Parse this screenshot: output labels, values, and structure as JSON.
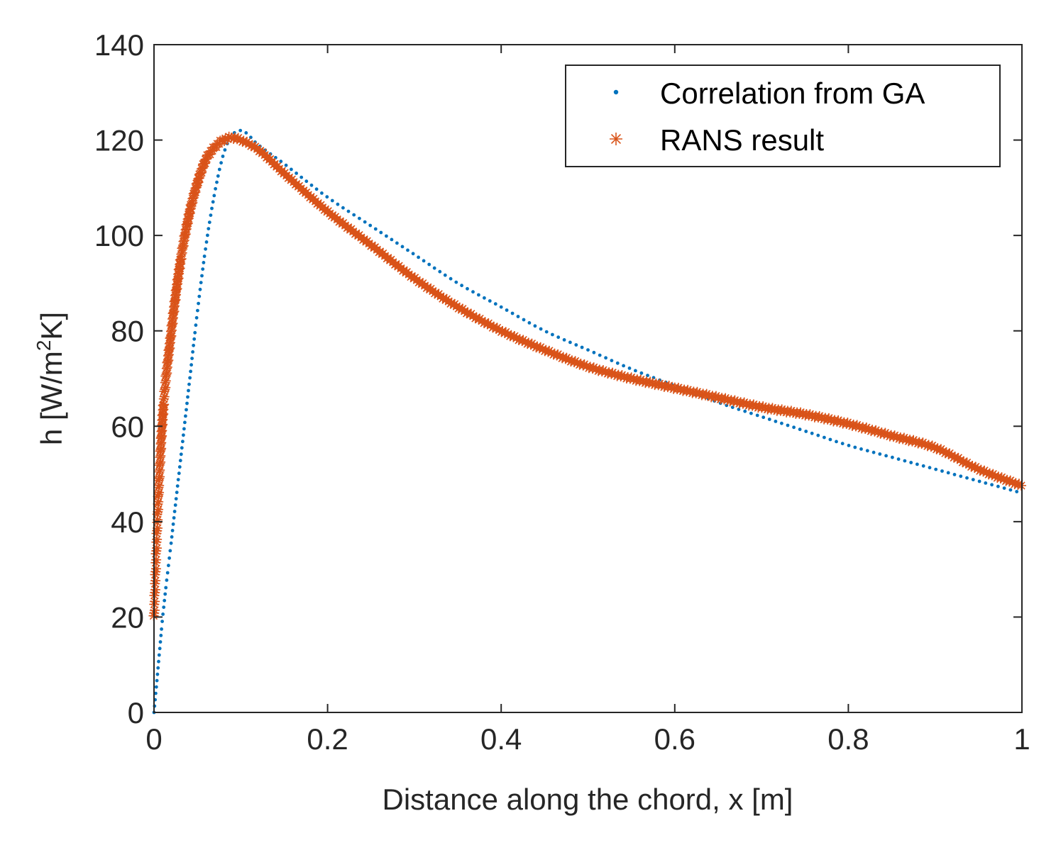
{
  "chart_data": {
    "type": "scatter",
    "title": "",
    "xlabel": "Distance along the chord, x [m]",
    "ylabel": "h [W/m",
    "ylabel_sup": "2",
    "ylabel_tail": "K]",
    "xlim": [
      0,
      1
    ],
    "ylim": [
      0,
      140
    ],
    "xticks": [
      0,
      0.2,
      0.4,
      0.6,
      0.8,
      1
    ],
    "xtick_labels": [
      "0",
      "0.2",
      "0.4",
      "0.6",
      "0.8",
      "1"
    ],
    "yticks": [
      0,
      20,
      40,
      60,
      80,
      100,
      120,
      140
    ],
    "ytick_labels": [
      "0",
      "20",
      "40",
      "60",
      "80",
      "100",
      "120",
      "140"
    ],
    "grid": false,
    "legend_position": "top-right",
    "series": [
      {
        "name": "Correlation from GA",
        "marker": "dot",
        "color": "#0072BD",
        "x": [
          0,
          0.005,
          0.01,
          0.02,
          0.03,
          0.04,
          0.05,
          0.06,
          0.07,
          0.08,
          0.09,
          0.1,
          0.12,
          0.15,
          0.2,
          0.25,
          0.3,
          0.35,
          0.4,
          0.45,
          0.5,
          0.55,
          0.6,
          0.65,
          0.7,
          0.75,
          0.8,
          0.85,
          0.9,
          0.95,
          1.0
        ],
        "y": [
          0,
          10,
          20,
          36,
          52,
          68,
          84,
          98,
          109,
          117,
          121,
          122,
          119,
          115,
          108,
          102,
          96,
          90,
          85,
          80,
          76,
          72,
          68.5,
          65,
          62,
          59,
          56,
          53.5,
          51,
          48.5,
          46
        ]
      },
      {
        "name": "RANS result",
        "marker": "asterisk",
        "color": "#D95319",
        "x": [
          0,
          0.005,
          0.01,
          0.02,
          0.03,
          0.04,
          0.05,
          0.06,
          0.07,
          0.08,
          0.09,
          0.1,
          0.12,
          0.15,
          0.2,
          0.25,
          0.3,
          0.35,
          0.4,
          0.45,
          0.5,
          0.55,
          0.6,
          0.65,
          0.7,
          0.75,
          0.8,
          0.85,
          0.9,
          0.95,
          1.0
        ],
        "y": [
          20,
          45,
          62,
          80,
          94,
          104,
          111,
          116,
          118.5,
          120,
          120.5,
          120,
          118,
          113,
          105,
          98,
          91,
          85,
          80,
          76,
          72.5,
          70,
          68,
          66,
          64,
          62.5,
          60.5,
          58,
          55.5,
          51,
          47.5
        ]
      }
    ]
  }
}
